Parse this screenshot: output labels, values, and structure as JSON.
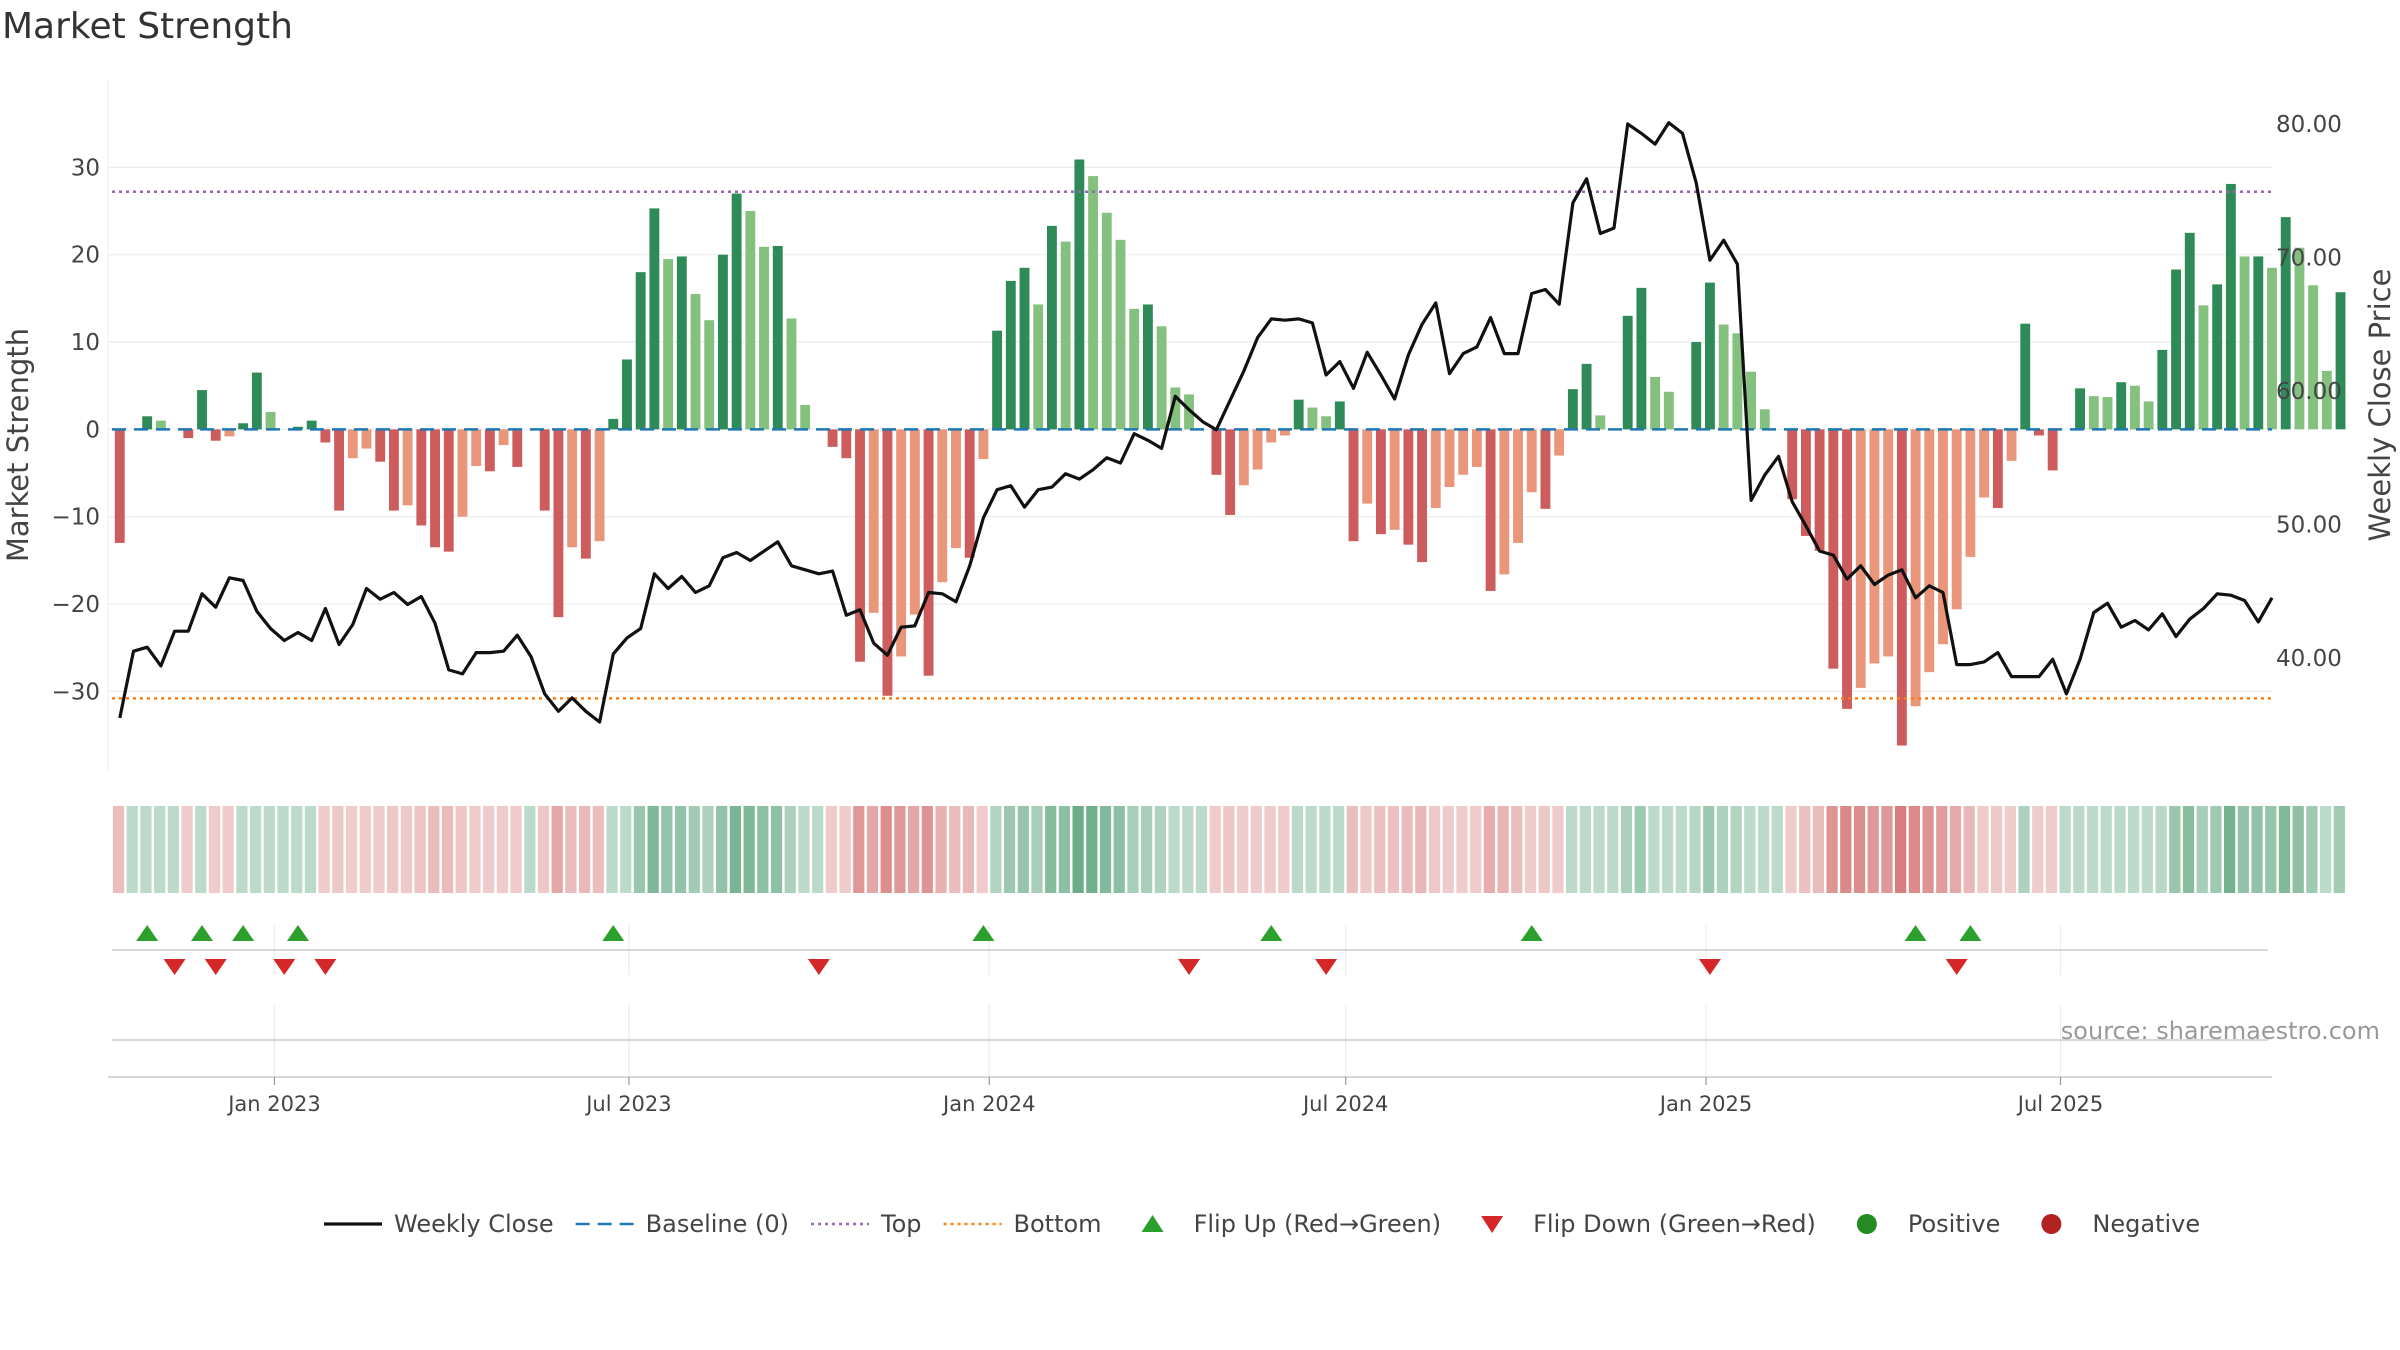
{
  "title": "Market Strength",
  "source": "source: sharemaestro.com",
  "chart_data": {
    "type": "bar",
    "title": "Market Strength",
    "ylabel_left": "Market Strength",
    "ylabel_right": "Weekly Close Price",
    "ylim_left": [
      -39,
      40
    ],
    "ylim_right": [
      31.6,
      83.3
    ],
    "yticks_left": [
      -30,
      -20,
      -10,
      0,
      10,
      20,
      30
    ],
    "yticks_right": [
      40,
      50,
      60,
      70,
      80
    ],
    "yticks_right_labels": [
      "40.00",
      "50.00",
      "60.00",
      "70.00",
      "80.00"
    ],
    "x_start": "2022-10-14",
    "x_step_days": 7,
    "x_range": [
      "2022-10-08",
      "2025-10-17"
    ],
    "x_tick_dates": [
      "2023-01-01",
      "2023-07-01",
      "2024-01-01",
      "2024-07-01",
      "2025-01-01",
      "2025-07-01"
    ],
    "x_tick_labels": [
      "Jan 2023",
      "Jul 2023",
      "Jan 2024",
      "Jul 2024",
      "Jan 2025",
      "Jul 2025"
    ],
    "top_line": 27.2,
    "bottom_line": -30.8,
    "baseline": 0,
    "grid": true,
    "legend_position": "bottom-center",
    "strength": [
      -13,
      0,
      1.5,
      1,
      0,
      -1,
      4.5,
      -1.3,
      -0.8,
      0.7,
      6.5,
      2,
      0,
      0.3,
      1,
      -1.5,
      -9.3,
      -3.3,
      -2.2,
      -3.7,
      -9.3,
      -8.7,
      -11,
      -13.5,
      -14,
      -10,
      -4.2,
      -4.8,
      -1.8,
      -4.3,
      0,
      -9.3,
      -21.5,
      -13.5,
      -14.8,
      -12.8,
      1.2,
      8,
      18,
      25.3,
      19.5,
      19.8,
      15.5,
      12.5,
      20,
      27,
      25,
      20.9,
      21,
      12.7,
      2.8,
      0,
      -2,
      -3.3,
      -26.6,
      -21,
      -30.5,
      -26,
      -21.2,
      -28.2,
      -17.5,
      -13.6,
      -14.7,
      -3.4,
      11.3,
      17,
      18.5,
      14.3,
      23.3,
      21.5,
      30.9,
      29,
      24.8,
      21.7,
      13.8,
      14.3,
      11.8,
      4.8,
      4,
      0,
      -5.2,
      -9.8,
      -6.4,
      -4.6,
      -1.5,
      -0.7,
      3.4,
      2.5,
      1.5,
      3.2,
      -12.8,
      -8.5,
      -12,
      -11.5,
      -13.2,
      -15.2,
      -9,
      -6.6,
      -5.2,
      -4.3,
      -18.5,
      -16.6,
      -13,
      -7.2,
      -9.1,
      -3,
      4.6,
      7.5,
      1.6,
      0,
      13,
      16.2,
      6,
      4.3,
      0,
      10,
      16.8,
      12,
      11,
      6.6,
      2.3,
      0,
      -8,
      -12.2,
      -13.9,
      -27.4,
      -32,
      -29.6,
      -26.8,
      -26,
      -36.2,
      -31.7,
      -27.8,
      -24.6,
      -20.6,
      -14.6,
      -7.8,
      -9,
      -3.6,
      12.1,
      -0.7,
      -4.7,
      0,
      4.7,
      3.8,
      3.7,
      5.4,
      5,
      3.2,
      9.1,
      18.3,
      22.5,
      14.2,
      16.6,
      28.1,
      19.8,
      19.8,
      18.5,
      24.3,
      20.8,
      16.5,
      6.7,
      15.7
    ],
    "weekly_close": [
      35.5,
      40.5,
      40.8,
      39.4,
      42,
      42,
      44.8,
      43.8,
      46,
      45.8,
      43.5,
      42.2,
      41.3,
      41.9,
      41.3,
      43.7,
      41,
      42.5,
      45.2,
      44.4,
      44.9,
      44,
      44.6,
      42.6,
      39.1,
      38.8,
      40.4,
      40.4,
      40.5,
      41.7,
      40.1,
      37.3,
      36,
      37,
      36,
      35.2,
      40.3,
      41.5,
      42.2,
      46.3,
      45.2,
      46.1,
      44.9,
      45.4,
      47.5,
      47.9,
      47.3,
      48,
      48.7,
      46.9,
      46.6,
      46.3,
      46.5,
      43.2,
      43.6,
      41.1,
      40.2,
      42.3,
      42.4,
      44.9,
      44.8,
      44.2,
      46.9,
      50.5,
      52.6,
      52.9,
      51.3,
      52.6,
      52.8,
      53.8,
      53.4,
      54.1,
      55,
      54.6,
      56.8,
      56.3,
      55.7,
      59.6,
      58.6,
      57.7,
      57.1,
      59.3,
      61.5,
      64,
      65.4,
      65.3,
      65.4,
      65.1,
      61.2,
      62.2,
      60.2,
      62.9,
      61.2,
      59.4,
      62.7,
      65,
      66.6,
      61.3,
      62.8,
      63.3,
      65.5,
      62.8,
      62.8,
      67.3,
      67.6,
      66.5,
      74.1,
      75.9,
      71.8,
      72.2,
      80,
      79.3,
      78.5,
      80.1,
      79.3,
      75.6,
      69.8,
      71.3,
      69.5,
      51.8,
      53.7,
      55.1,
      51.7,
      49.9,
      48,
      47.7,
      45.9,
      46.9,
      45.5,
      46.2,
      46.6,
      44.5,
      45.4,
      44.9,
      39.5,
      39.5,
      39.7,
      40.4,
      38.6,
      38.6,
      38.6,
      39.9,
      37.3,
      39.9,
      43.4,
      44.1,
      42.3,
      42.8,
      42.1,
      43.3,
      41.6,
      42.9,
      43.7,
      44.8,
      44.7,
      44.3,
      42.7,
      44.5
    ],
    "flip_up_weeks": [
      2,
      6,
      9,
      13,
      36,
      63,
      84,
      103,
      131,
      135
    ],
    "flip_down_weeks": [
      4,
      7,
      12,
      15,
      51,
      78,
      88,
      116,
      134
    ],
    "legend": [
      {
        "label": "Weekly Close",
        "kind": "line",
        "color": "#111111"
      },
      {
        "label": "Baseline (0)",
        "kind": "dash",
        "color": "#1f77b4"
      },
      {
        "label": "Top",
        "kind": "dot",
        "color": "#9467bd"
      },
      {
        "label": "Bottom",
        "kind": "dot",
        "color": "#ff7f0e"
      },
      {
        "label": "Flip Up (Red→Green)",
        "kind": "tri-up",
        "color": "#2ca02c"
      },
      {
        "label": "Flip Down (Green→Red)",
        "kind": "tri-down",
        "color": "#d62728"
      },
      {
        "label": "Positive",
        "kind": "circle",
        "color": "#228b22"
      },
      {
        "label": "Negative",
        "kind": "circle",
        "color": "#b22222"
      }
    ],
    "colors": {
      "pos_strong": "#2e8b57",
      "pos_weak": "#85c17e",
      "neg_strong": "#cd5c5c",
      "neg_weak": "#e9967a",
      "line": "#111111",
      "baseline": "#1f77b4",
      "top": "#9467bd",
      "bottom": "#ff7f0e",
      "flip_up": "#2ca02c",
      "flip_down": "#d62728"
    }
  }
}
